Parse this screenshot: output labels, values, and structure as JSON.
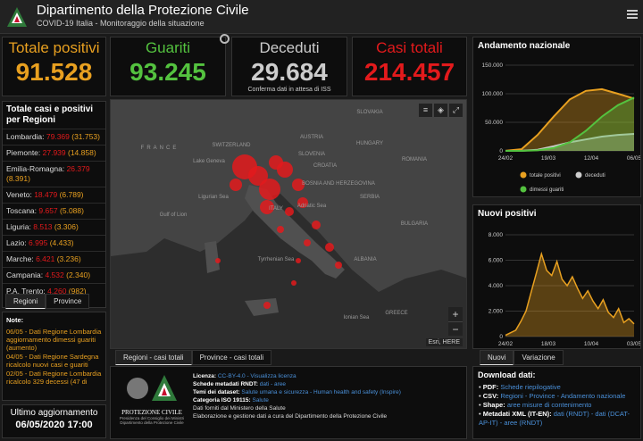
{
  "header": {
    "title": "Dipartimento della Protezione Civile",
    "subtitle": "COVID-19 Italia - Monitoraggio della situazione"
  },
  "stats": {
    "positivi": {
      "label": "Totale positivi",
      "value": "91.528"
    },
    "guariti": {
      "label": "Guariti",
      "value": "93.245"
    },
    "deceduti": {
      "label": "Deceduti",
      "value": "29.684",
      "note": "Conferma dati in attesa di ISS"
    },
    "casi": {
      "label": "Casi totali",
      "value": "214.457"
    }
  },
  "regions": {
    "title": "Totale casi e positivi per Regioni",
    "rows": [
      {
        "name": "Lombardia:",
        "tot": "79.369",
        "pos": "(31.753)"
      },
      {
        "name": "Piemonte:",
        "tot": "27.939",
        "pos": "(14.858)"
      },
      {
        "name": "Emilia-Romagna:",
        "tot": "26.379",
        "pos": "(8.391)"
      },
      {
        "name": "Veneto:",
        "tot": "18.479",
        "pos": "(6.789)"
      },
      {
        "name": "Toscana:",
        "tot": "9.657",
        "pos": "(5.088)"
      },
      {
        "name": "Liguria:",
        "tot": "8.513",
        "pos": "(3.306)"
      },
      {
        "name": "Lazio:",
        "tot": "6.995",
        "pos": "(4.433)"
      },
      {
        "name": "Marche:",
        "tot": "6.421",
        "pos": "(3.236)"
      },
      {
        "name": "Campania:",
        "tot": "4.532",
        "pos": "(2.340)"
      },
      {
        "name": "P.A. Trento:",
        "tot": "4.260",
        "pos": "(982)"
      }
    ],
    "tabs": [
      "Regioni",
      "Province"
    ]
  },
  "notes": {
    "title": "Note:",
    "items": [
      "06/05 - Dati Regione Lombardia aggiornamento dimessi guariti (aumento)",
      "04/05 - Dati Regione Sardegna ricalcolo nuovi casi e guariti",
      "02/05 - Dati Regione Lombardia ricalcolo 329 decessi (47 di"
    ]
  },
  "update": {
    "label": "Ultimo aggiornamento",
    "value": "06/05/2020 17:00"
  },
  "map": {
    "labels": [
      "FRANCE",
      "SWITZERLAND",
      "AUSTRIA",
      "SLOVAKIA",
      "HUNGARY",
      "SLOVENIA",
      "CROATIA",
      "ROMANIA",
      "SERBIA",
      "BOSNIA AND HERZEGOVINA",
      "BULGARIA",
      "ALBANIA",
      "GREECE",
      "ITALY",
      "Adriatic Sea",
      "Tyrrhenian Sea",
      "Ionian Sea",
      "Gulf of Lion",
      "Ligurian Sea",
      "Lake Geneva"
    ],
    "attribution": "Esri, HERE",
    "tabs": [
      "Regioni - casi totali",
      "Province - casi totali"
    ]
  },
  "info": {
    "lines": [
      {
        "k": "Licenza:",
        "v": "CC-BY-4.0 - Visualizza licenza"
      },
      {
        "k": "Schede metadati RNDT:",
        "v": "dati - aree"
      },
      {
        "k": "Temi dei dataset:",
        "v": "Salute umana e sicurezza - Human health and safety (Inspire)"
      },
      {
        "k": "Categoria ISO 19115:",
        "v": "Salute"
      },
      {
        "k": "",
        "v": "Dati forniti dal Ministero della Salute"
      },
      {
        "k": "",
        "v": "Elaborazione e gestione dati a cura del Dipartimento della Protezione Civile"
      }
    ],
    "logo_text": [
      "PROTEZIONE CIVILE",
      "Presidenza del Consiglio dei Ministri",
      "Dipartimento della Protezione Civile"
    ]
  },
  "download": {
    "title": "Download dati:",
    "lines": [
      {
        "k": "PDF:",
        "v": "Schede riepilogative"
      },
      {
        "k": "CSV:",
        "v": "Regioni - Province - Andamento nazionale"
      },
      {
        "k": "Shape:",
        "v": "aree misure di contenimento"
      },
      {
        "k": "Metadati XML (IT-EN):",
        "v": "dati (RNDT) - dati (DCAT-AP-IT) - aree (RNDT)"
      }
    ]
  },
  "colors": {
    "positivi": "#e8a020",
    "guariti": "#54c23f",
    "deceduti": "#cccccc",
    "casi": "#e31a1c"
  },
  "chart_data": [
    {
      "type": "area",
      "title": "Andamento nazionale",
      "x_ticks": [
        "24/02",
        "19/03",
        "12/04",
        "06/05"
      ],
      "y_ticks": [
        "0",
        "50.000",
        "100.000",
        "150.000"
      ],
      "ylim": [
        0,
        150000
      ],
      "series": [
        {
          "name": "totale positivi",
          "values": [
            200,
            3000,
            28000,
            60000,
            90000,
            105000,
            108000,
            100000,
            91528
          ]
        },
        {
          "name": "deceduti",
          "values": [
            10,
            100,
            2000,
            8000,
            15000,
            20000,
            25000,
            28000,
            29684
          ]
        },
        {
          "name": "dimessi guariti",
          "values": [
            0,
            50,
            1000,
            5000,
            15000,
            35000,
            60000,
            80000,
            93245
          ]
        }
      ]
    },
    {
      "type": "line",
      "title": "Nuovi positivi",
      "x_ticks": [
        "24/02",
        "18/03",
        "10/04",
        "03/05"
      ],
      "y_ticks": [
        "0",
        "2.000",
        "4.000",
        "6.000",
        "8.000"
      ],
      "ylim": [
        0,
        8000
      ],
      "series": [
        {
          "name": "Nuovi positivi",
          "values": [
            100,
            300,
            500,
            1200,
            2000,
            3500,
            5000,
            6500,
            5200,
            4800,
            5900,
            4500,
            4000,
            4700,
            3800,
            3000,
            3600,
            2800,
            2200,
            2900,
            1900,
            1500,
            2200,
            1100,
            1400,
            1000
          ]
        }
      ]
    }
  ]
}
